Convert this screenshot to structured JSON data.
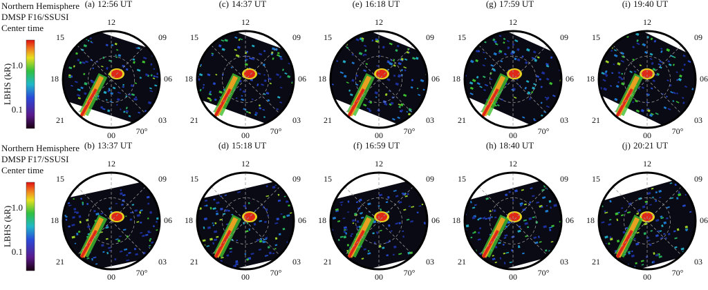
{
  "rows": [
    {
      "hemisphere": "Northern Hemisphere",
      "satellite": "DMSP F16/SSUSI",
      "center_time_label": "Center time",
      "colorbar": {
        "label": "LBHS (kR)",
        "ticks": [
          "1.0",
          "0.1"
        ]
      },
      "panels": [
        {
          "label": "(a)",
          "time": "12:56 UT"
        },
        {
          "label": "(c)",
          "time": "14:37 UT"
        },
        {
          "label": "(e)",
          "time": "16:18 UT"
        },
        {
          "label": "(g)",
          "time": "17:59 UT"
        },
        {
          "label": "(i)",
          "time": "19:40 UT"
        }
      ]
    },
    {
      "hemisphere": "Northern Hemisphere",
      "satellite": "DMSP F17/SSUSI",
      "center_time_label": "Center time",
      "colorbar": {
        "label": "LBHS (kR)",
        "ticks": [
          "1.0",
          "0.1"
        ]
      },
      "panels": [
        {
          "label": "(b)",
          "time": "13:37 UT"
        },
        {
          "label": "(d)",
          "time": "15:18 UT"
        },
        {
          "label": "(f)",
          "time": "16:59 UT"
        },
        {
          "label": "(h)",
          "time": "18:40 UT"
        },
        {
          "label": "(j)",
          "time": "20:21 UT"
        }
      ]
    }
  ],
  "mlt_labels": {
    "top": "12",
    "upper_left": "15",
    "upper_right": "09",
    "left": "18",
    "right": "06",
    "lower_left": "21",
    "lower_right": "03",
    "bottom": "00"
  },
  "lat_label": "70°"
}
